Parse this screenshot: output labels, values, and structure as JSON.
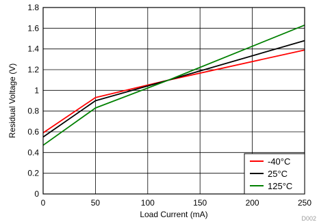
{
  "chart_data": {
    "type": "line",
    "xlabel": "Load Current (mA)",
    "ylabel": "Residual Voltage (V)",
    "xlim": [
      0,
      250
    ],
    "ylim": [
      0,
      1.8
    ],
    "x_ticks": [
      0,
      50,
      100,
      150,
      200,
      250
    ],
    "y_ticks": [
      0,
      0.2,
      0.4,
      0.6,
      0.8,
      1,
      1.2,
      1.4,
      1.6,
      1.8
    ],
    "x_tick_labels": [
      "0",
      "50",
      "100",
      "150",
      "200",
      "250"
    ],
    "y_tick_labels": [
      "0",
      "0.2",
      "0.4",
      "0.6",
      "0.8",
      "1",
      "1.2",
      "1.4",
      "1.6",
      "1.8"
    ],
    "grid": true,
    "legend_position": "bottom-right",
    "series": [
      {
        "name": "-40°C",
        "color": "#ff0000",
        "x": [
          0,
          50,
          120,
          250
        ],
        "y": [
          0.59,
          0.93,
          1.1,
          1.39
        ]
      },
      {
        "name": "25°C",
        "color": "#000000",
        "x": [
          0,
          50,
          120,
          250
        ],
        "y": [
          0.55,
          0.9,
          1.1,
          1.48
        ]
      },
      {
        "name": "125°C",
        "color": "#008000",
        "x": [
          0,
          50,
          120,
          250
        ],
        "y": [
          0.47,
          0.83,
          1.1,
          1.63
        ]
      }
    ],
    "footnote": "D002"
  }
}
